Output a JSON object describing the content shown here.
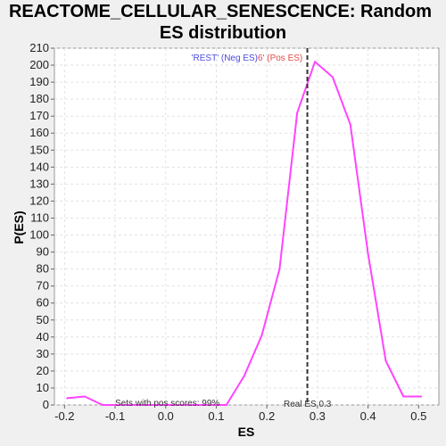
{
  "title_line1": "REACTOME_CELLULAR_SENESCENCE: Random",
  "title_line2": "ES distribution",
  "chart_data": {
    "type": "line",
    "title": "REACTOME_CELLULAR_SENESCENCE: Random ES distribution",
    "xlabel": "ES",
    "ylabel": "P(ES)",
    "xlim": [
      -0.22,
      0.54
    ],
    "ylim": [
      0,
      210
    ],
    "x_ticks": [
      -0.2,
      -0.1,
      0.0,
      0.1,
      0.2,
      0.3,
      0.4,
      0.5
    ],
    "x_tick_labels": [
      "-0.2",
      "-0.1",
      "0.0",
      "0.1",
      "0.2",
      "0.3",
      "0.4",
      "0.5"
    ],
    "y_ticks": [
      0,
      10,
      20,
      30,
      40,
      50,
      60,
      70,
      80,
      90,
      100,
      110,
      120,
      130,
      140,
      150,
      160,
      170,
      180,
      190,
      200,
      210
    ],
    "grid": true,
    "series": [
      {
        "color": "#ff44ff",
        "x": [
          -0.195,
          -0.16,
          -0.125,
          -0.09,
          -0.055,
          -0.02,
          0.015,
          0.05,
          0.085,
          0.12,
          0.155,
          0.19,
          0.225,
          0.26,
          0.295,
          0.33,
          0.365,
          0.4,
          0.435,
          0.47,
          0.505
        ],
        "y": [
          4,
          5,
          0,
          0,
          0,
          0,
          0,
          0,
          0,
          0,
          17,
          41,
          80,
          172,
          202,
          193,
          165,
          89,
          26,
          5,
          5
        ]
      }
    ],
    "real_es": 0.28,
    "real_es_label": "Real ES 0.3",
    "pos_scores_label": "Sets with pos scores: 99%",
    "legend_neg": "'REST' (Neg ES)",
    "legend_pos": "6' (Pos ES)"
  }
}
